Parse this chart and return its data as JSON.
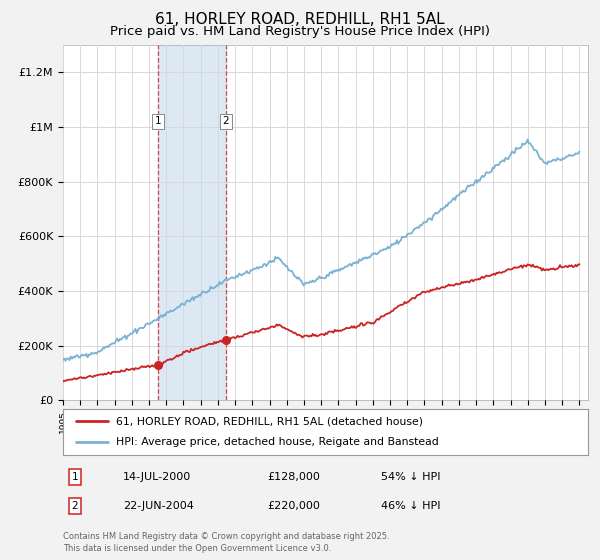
{
  "title": "61, HORLEY ROAD, REDHILL, RH1 5AL",
  "subtitle": "Price paid vs. HM Land Registry's House Price Index (HPI)",
  "title_fontsize": 11,
  "subtitle_fontsize": 9.5,
  "background_color": "#f2f2f2",
  "plot_bg_color": "#ffffff",
  "legend_line1": "61, HORLEY ROAD, REDHILL, RH1 5AL (detached house)",
  "legend_line2": "HPI: Average price, detached house, Reigate and Banstead",
  "sale1_date_label": "14-JUL-2000",
  "sale1_price_label": "£128,000",
  "sale1_pct_label": "54% ↓ HPI",
  "sale2_date_label": "22-JUN-2004",
  "sale2_price_label": "£220,000",
  "sale2_pct_label": "46% ↓ HPI",
  "sale1_year": 2000.53,
  "sale2_year": 2004.47,
  "sale1_price": 128000,
  "sale2_price": 220000,
  "red_color": "#cc2222",
  "blue_color": "#7ab0d4",
  "span_color": "#dce9f5",
  "footnote": "Contains HM Land Registry data © Crown copyright and database right 2025.\nThis data is licensed under the Open Government Licence v3.0.",
  "ylim": [
    0,
    1300000
  ],
  "yticks": [
    0,
    200000,
    400000,
    600000,
    800000,
    1000000,
    1200000
  ],
  "ytick_labels": [
    "£0",
    "£200K",
    "£400K",
    "£600K",
    "£800K",
    "£1M",
    "£1.2M"
  ]
}
